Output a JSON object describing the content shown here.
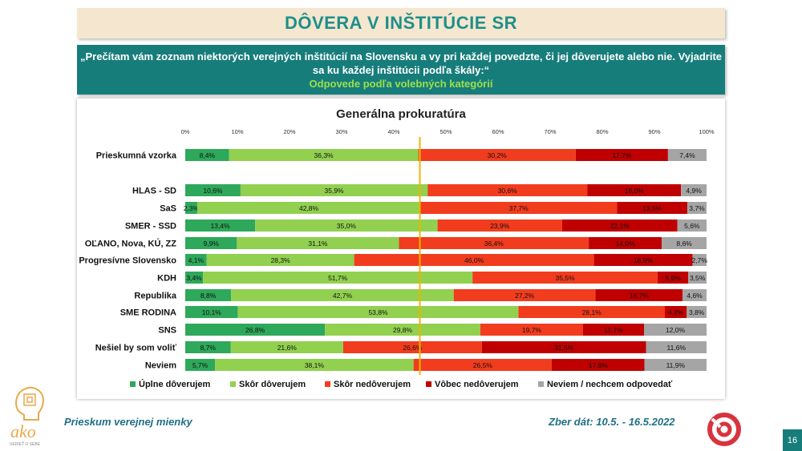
{
  "header": {
    "title": "DÔVERA V INŠTITÚCIE SR"
  },
  "question": {
    "text": "„Prečítam vám zoznam niektorých verejných inštitúcií na Slovensku a vy pri každej povedzte, či jej dôverujete alebo nie. Vyjadrite sa ku každej inštitúcii podľa škály:“",
    "sub": "Odpovede podľa volebných kategórií"
  },
  "footer": {
    "survey": "Prieskum verejnej mienky",
    "dates": "Zber dát: 10.5. - 16.5.2022",
    "page": "16",
    "logo_text": "ako",
    "logo_tagline": "VEDIEŤ O SEBE"
  },
  "colors": {
    "s1": "#2ea85a",
    "s2": "#92d050",
    "s3": "#f23c1e",
    "s4": "#c00000",
    "s5": "#a5a5a5",
    "marker": "#f0b400"
  },
  "chart_data": {
    "type": "bar",
    "orientation": "horizontal-stacked-100",
    "title": "Generálna prokuratúra",
    "xlim": [
      0,
      100
    ],
    "xticks": [
      "0%",
      "10%",
      "20%",
      "30%",
      "40%",
      "50%",
      "60%",
      "70%",
      "80%",
      "90%",
      "100%"
    ],
    "legend_position": "bottom",
    "marker_line": 45,
    "categories": [
      "Prieskumná vzorka",
      "HLAS - SD",
      "SaS",
      "SMER - SSD",
      "OĽANO, Nova, KÚ, ZZ",
      "Progresívne Slovensko",
      "KDH",
      "Republika",
      "SME RODINA",
      "SNS",
      "Nešiel by som voliť",
      "Neviem"
    ],
    "series": [
      {
        "name": "Úplne dôverujem",
        "values": [
          8.4,
          10.6,
          2.3,
          13.4,
          9.9,
          4.1,
          3.4,
          8.8,
          10.1,
          26.8,
          8.7,
          5.7
        ],
        "labels": [
          "8,4%",
          "10,6%",
          "2,3%",
          "13,4%",
          "9,9%",
          "4,1%",
          "3,4%",
          "8,8%",
          "10,1%",
          "26,8%",
          "8,7%",
          "5,7%"
        ]
      },
      {
        "name": "Skôr dôverujem",
        "values": [
          36.3,
          35.9,
          42.8,
          35.0,
          31.1,
          28.3,
          51.7,
          42.7,
          53.8,
          29.8,
          21.6,
          38.1
        ],
        "labels": [
          "36,3%",
          "35,9%",
          "42,8%",
          "35,0%",
          "31,1%",
          "28,3%",
          "51,7%",
          "42,7%",
          "53,8%",
          "29,8%",
          "21,6%",
          "38,1%"
        ]
      },
      {
        "name": "Skôr nedôverujem",
        "values": [
          30.2,
          30.6,
          37.7,
          23.9,
          36.4,
          46.0,
          35.5,
          27.2,
          28.1,
          19.7,
          26.6,
          26.5
        ],
        "labels": [
          "30,2%",
          "30,6%",
          "37,7%",
          "23,9%",
          "36,4%",
          "46,0%",
          "35,5%",
          "27,2%",
          "28,1%",
          "19,7%",
          "26,6%",
          "26,5%"
        ]
      },
      {
        "name": "Vôbec nedôverujem",
        "values": [
          17.7,
          18.0,
          13.5,
          22.1,
          14.0,
          18.9,
          5.9,
          16.7,
          4.2,
          11.7,
          31.5,
          17.8
        ],
        "labels": [
          "17,7%",
          "18,0%",
          "13,5%",
          "22,1%",
          "14,0%",
          "18,9%",
          "5,9%",
          "16,7%",
          "4,2%",
          "11,7%",
          "31,5%",
          "17,8%"
        ]
      },
      {
        "name": "Neviem / nechcem odpovedať",
        "values": [
          7.4,
          4.9,
          3.7,
          5.6,
          8.6,
          2.7,
          3.5,
          4.6,
          3.8,
          12.0,
          11.6,
          11.9
        ],
        "labels": [
          "7,4%",
          "4,9%",
          "3,7%",
          "5,6%",
          "8,6%",
          "2,7%",
          "3,5%",
          "4,6%",
          "3,8%",
          "12,0%",
          "11,6%",
          "11,9%"
        ]
      }
    ]
  }
}
